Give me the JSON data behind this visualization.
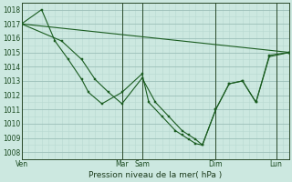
{
  "title": "Pression niveau de la mer( hPa )",
  "background_color": "#cce8e0",
  "grid_major_color": "#9bbfb8",
  "grid_minor_color": "#b8d8d0",
  "line_color": "#1a5c20",
  "ylim": [
    1007.5,
    1018.5
  ],
  "yticks": [
    1008,
    1009,
    1010,
    1011,
    1012,
    1013,
    1014,
    1015,
    1016,
    1017,
    1018
  ],
  "xlim": [
    0,
    40
  ],
  "xtick_positions": [
    0,
    15,
    18,
    29,
    38
  ],
  "xtick_labels": [
    "Ven",
    "Mar",
    "Sam",
    "Dim",
    "Lun"
  ],
  "vline_positions": [
    0,
    15,
    18,
    29,
    38
  ],
  "series": [
    {
      "x": [
        0,
        40
      ],
      "y": [
        1017.0,
        1015.0
      ]
    },
    {
      "x": [
        0,
        6,
        9,
        11,
        13,
        15,
        18,
        20,
        22,
        24,
        25,
        26,
        27,
        29,
        31,
        33,
        35,
        37,
        40
      ],
      "y": [
        1017.0,
        1015.8,
        1014.5,
        1013.1,
        1012.2,
        1011.4,
        1013.2,
        1011.5,
        1010.5,
        1009.5,
        1009.2,
        1008.9,
        1008.5,
        1011.0,
        1012.8,
        1013.0,
        1011.5,
        1014.8,
        1015.0
      ]
    },
    {
      "x": [
        0,
        3,
        5,
        7,
        9,
        10,
        12,
        15,
        18,
        19,
        21,
        23,
        24,
        25,
        26,
        27,
        29,
        31,
        33,
        35,
        37,
        40
      ],
      "y": [
        1017.0,
        1018.0,
        1015.8,
        1014.5,
        1013.1,
        1012.2,
        1011.4,
        1012.2,
        1013.5,
        1011.5,
        1010.5,
        1009.5,
        1009.2,
        1008.9,
        1008.6,
        1008.5,
        1011.0,
        1012.8,
        1013.0,
        1011.5,
        1014.7,
        1015.0
      ]
    }
  ]
}
